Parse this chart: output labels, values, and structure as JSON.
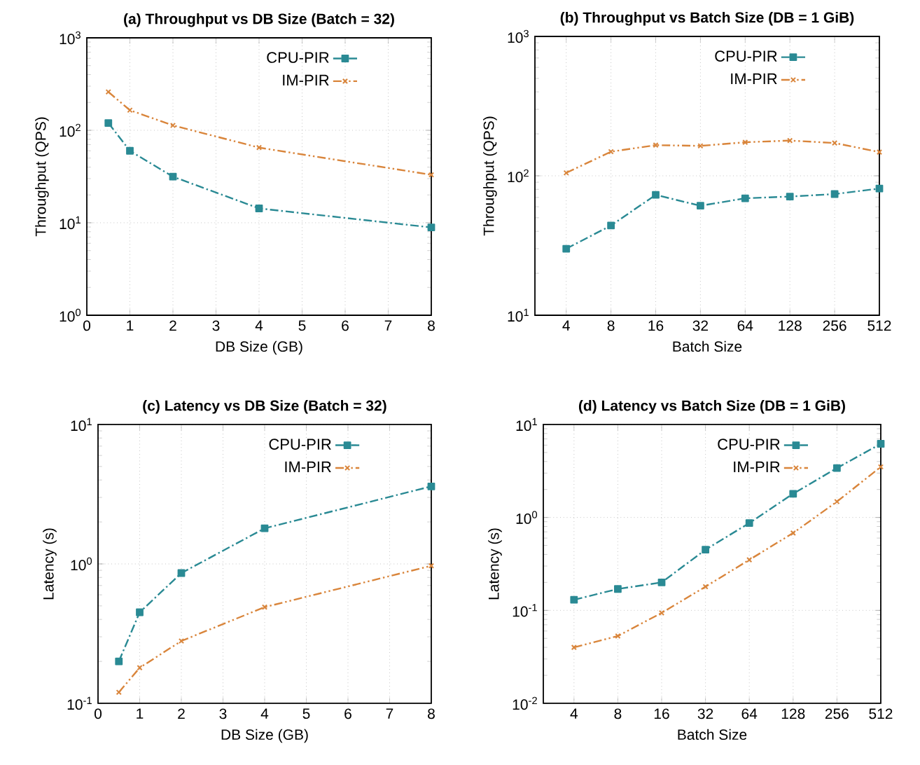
{
  "chart_data": [
    {
      "type": "line",
      "title": "(a) Throughput vs DB Size (Batch = 32)",
      "xlabel": "DB Size (GB)",
      "ylabel": "Throughput (QPS)",
      "log": "y",
      "grid": true,
      "legend": "top right",
      "x": [
        0.5,
        1,
        2,
        4,
        8
      ],
      "xlim": [
        0,
        8
      ],
      "xticks": [
        0,
        1,
        2,
        3,
        4,
        5,
        6,
        7,
        8
      ],
      "ylim": [
        1,
        1000
      ],
      "yticks": [
        {
          "value": 1,
          "label": "10$^{0}$"
        },
        {
          "value": 10,
          "label": "10$^{1}$"
        },
        {
          "value": 100,
          "label": "10$^{2}$"
        },
        {
          "value": 1000,
          "label": "10$^{3}$"
        }
      ],
      "series": [
        {
          "name": "CPU-PIR",
          "color": "#2a8a94",
          "marker": "square",
          "line_style": "dashed",
          "values": [
            120,
            60,
            31.5,
            14.3,
            8.9
          ]
        },
        {
          "name": "IM-PIR",
          "color": "#d9853b",
          "marker": "cross",
          "line_style": "dotted",
          "values": [
            260,
            165,
            113,
            65,
            33
          ]
        }
      ]
    },
    {
      "type": "line",
      "title": "(b) Throughput vs Batch Size (DB = 1 GiB)",
      "xlabel": "Batch Size",
      "ylabel": "Throughput (QPS)",
      "log": "y",
      "grid": true,
      "legend": "top right",
      "categories": [
        "4",
        "8",
        "16",
        "32",
        "64",
        "128",
        "256",
        "512"
      ],
      "ylim": [
        10,
        1000
      ],
      "yticks": [
        {
          "value": 10,
          "label": "10$^{1}$"
        },
        {
          "value": 100,
          "label": "10$^{2}$"
        },
        {
          "value": 1000,
          "label": "10$^{3}$"
        }
      ],
      "series": [
        {
          "name": "CPU-PIR",
          "color": "#2a8a94",
          "marker": "square",
          "line_style": "dashed",
          "values": [
            30,
            44,
            73,
            61,
            69,
            71,
            74,
            81
          ]
        },
        {
          "name": "IM-PIR",
          "color": "#d9853b",
          "marker": "cross",
          "line_style": "dotted",
          "values": [
            105,
            149,
            166,
            164,
            174,
            179,
            172,
            148
          ]
        }
      ]
    },
    {
      "type": "line",
      "title": "(c) Latency vs DB Size (Batch = 32)",
      "xlabel": "DB Size (GB)",
      "ylabel": "Latency (s)",
      "log": "y",
      "grid": true,
      "legend": "top right",
      "x": [
        0.5,
        1,
        2,
        4,
        8
      ],
      "xlim": [
        0,
        8
      ],
      "xticks": [
        0,
        1,
        2,
        3,
        4,
        5,
        6,
        7,
        8
      ],
      "ylim": [
        0.1,
        10
      ],
      "yticks": [
        {
          "value": 0.1,
          "label": "10$^{-1}$"
        },
        {
          "value": 1,
          "label": "10$^{0}$"
        },
        {
          "value": 10,
          "label": "10$^{1}$"
        }
      ],
      "series": [
        {
          "name": "CPU-PIR",
          "color": "#2a8a94",
          "marker": "square",
          "line_style": "dashed",
          "values": [
            0.2,
            0.45,
            0.86,
            1.8,
            3.6
          ]
        },
        {
          "name": "IM-PIR",
          "color": "#d9853b",
          "marker": "cross",
          "line_style": "dotted",
          "values": [
            0.12,
            0.18,
            0.28,
            0.49,
            0.97
          ]
        }
      ]
    },
    {
      "type": "line",
      "title": "(d) Latency vs Batch Size (DB = 1 GiB)",
      "xlabel": "Batch Size",
      "ylabel": "Latency (s)",
      "log": "y",
      "grid": true,
      "legend": "top right",
      "categories": [
        "4",
        "8",
        "16",
        "32",
        "64",
        "128",
        "256",
        "512"
      ],
      "ylim": [
        0.01,
        10
      ],
      "yticks": [
        {
          "value": 0.01,
          "label": "10$^{-2}$"
        },
        {
          "value": 0.1,
          "label": "10$^{-1}$"
        },
        {
          "value": 1,
          "label": "10$^{0}$"
        },
        {
          "value": 10,
          "label": "10$^{1}$"
        }
      ],
      "series": [
        {
          "name": "CPU-PIR",
          "color": "#2a8a94",
          "marker": "square",
          "line_style": "dashed",
          "values": [
            0.13,
            0.17,
            0.2,
            0.45,
            0.87,
            1.8,
            3.4,
            6.2
          ]
        },
        {
          "name": "IM-PIR",
          "color": "#d9853b",
          "marker": "cross",
          "line_style": "dotted",
          "values": [
            0.04,
            0.053,
            0.094,
            0.18,
            0.35,
            0.68,
            1.48,
            3.5
          ]
        }
      ]
    }
  ]
}
